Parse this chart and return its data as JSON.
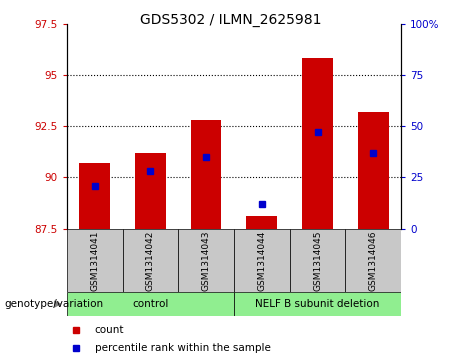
{
  "title": "GDS5302 / ILMN_2625981",
  "samples": [
    "GSM1314041",
    "GSM1314042",
    "GSM1314043",
    "GSM1314044",
    "GSM1314045",
    "GSM1314046"
  ],
  "counts": [
    90.7,
    91.2,
    92.8,
    88.1,
    95.8,
    93.2
  ],
  "percentile_ranks": [
    21,
    28,
    35,
    12,
    47,
    37
  ],
  "bar_color": "#CC0000",
  "dot_color": "#0000CC",
  "ylim_left": [
    87.5,
    97.5
  ],
  "ylim_right": [
    0,
    100
  ],
  "yticks_left": [
    87.5,
    90.0,
    92.5,
    95.0,
    97.5
  ],
  "yticks_right": [
    0,
    25,
    50,
    75,
    100
  ],
  "ytick_labels_left": [
    "87.5",
    "90",
    "92.5",
    "95",
    "97.5"
  ],
  "ytick_labels_right": [
    "0",
    "25",
    "50",
    "75",
    "100%"
  ],
  "grid_values": [
    90.0,
    92.5,
    95.0
  ],
  "left_axis_color": "#CC0000",
  "right_axis_color": "#0000CC",
  "bar_width": 0.55,
  "background_color": "#ffffff",
  "box_color": "#C8C8C8",
  "green_color": "#90EE90",
  "group_label": "genotype/variation",
  "control_label": "control",
  "nelf_label": "NELF B subunit deletion",
  "legend_count": "count",
  "legend_pct": "percentile rank within the sample",
  "title_fontsize": 10,
  "tick_fontsize": 7.5,
  "label_fontsize": 7.5,
  "sample_fontsize": 6.5
}
